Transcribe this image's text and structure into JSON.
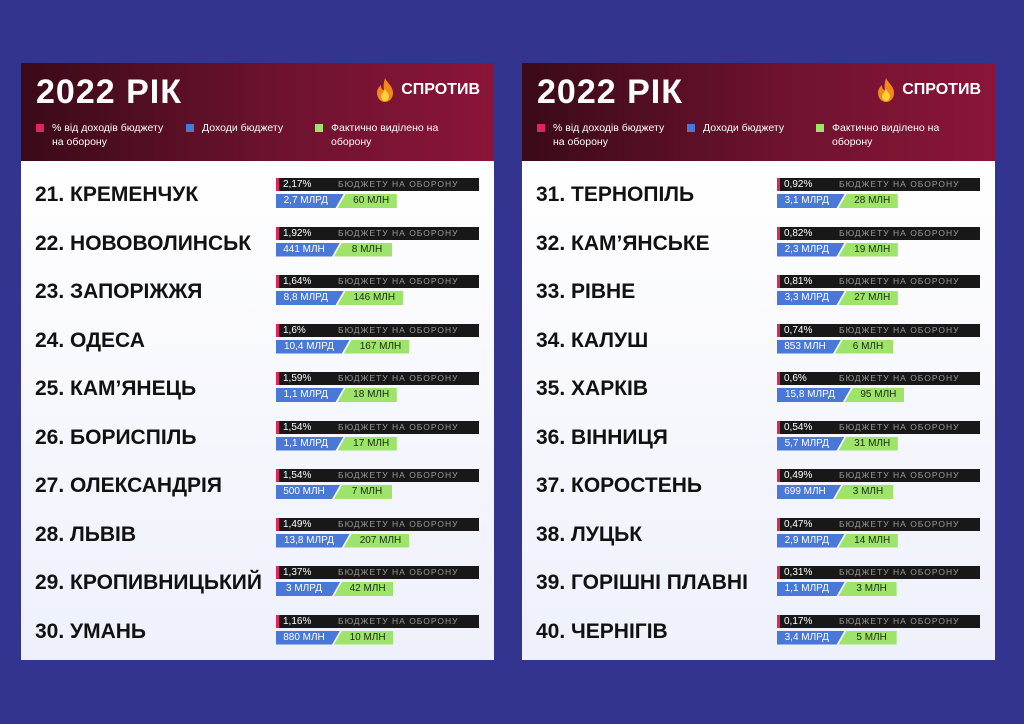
{
  "chart_data": [
    {
      "type": "table",
      "title": "2022 РІК",
      "brand": "СПРОТИВ",
      "legend": {
        "pct": "% від доходів бюджету на оборону",
        "income": "Доходи бюджету",
        "defense": "Фактично виділено на оборону"
      },
      "bar_label": "БЮДЖЕТУ НА ОБОРОНУ",
      "rows": [
        {
          "rank": "21.",
          "city": "КРЕМЕНЧУК",
          "pct": "2,17%",
          "income": "2,7 МЛРД",
          "defense": "60 МЛН"
        },
        {
          "rank": "22.",
          "city": "НОВОВОЛИНСЬК",
          "pct": "1,92%",
          "income": "441 МЛН",
          "defense": "8 МЛН"
        },
        {
          "rank": "23.",
          "city": "ЗАПОРІЖЖЯ",
          "pct": "1,64%",
          "income": "8,8 МЛРД",
          "defense": "146 МЛН"
        },
        {
          "rank": "24.",
          "city": "ОДЕСА",
          "pct": "1,6%",
          "income": "10,4 МЛРД",
          "defense": "167 МЛН"
        },
        {
          "rank": "25.",
          "city": "КАМ’ЯНЕЦЬ",
          "pct": "1,59%",
          "income": "1,1 МЛРД",
          "defense": "18 МЛН"
        },
        {
          "rank": "26.",
          "city": "БОРИСПІЛЬ",
          "pct": "1,54%",
          "income": "1,1 МЛРД",
          "defense": "17 МЛН"
        },
        {
          "rank": "27.",
          "city": "ОЛЕКСАНДРІЯ",
          "pct": "1,54%",
          "income": "500 МЛН",
          "defense": "7 МЛН"
        },
        {
          "rank": "28.",
          "city": "ЛЬВІВ",
          "pct": "1,49%",
          "income": "13,8 МЛРД",
          "defense": "207 МЛН"
        },
        {
          "rank": "29.",
          "city": "КРОПИВНИЦЬКИЙ",
          "pct": "1,37%",
          "income": "3 МЛРД",
          "defense": "42 МЛН"
        },
        {
          "rank": "30.",
          "city": "УМАНЬ",
          "pct": "1,16%",
          "income": "880 МЛН",
          "defense": "10 МЛН"
        }
      ]
    },
    {
      "type": "table",
      "title": "2022 РІК",
      "brand": "СПРОТИВ",
      "legend": {
        "pct": "% від доходів бюджету на оборону",
        "income": "Доходи бюджету",
        "defense": "Фактично виділено на оборону"
      },
      "bar_label": "БЮДЖЕТУ НА ОБОРОНУ",
      "rows": [
        {
          "rank": "31.",
          "city": "ТЕРНОПІЛЬ",
          "pct": "0,92%",
          "income": "3,1 МЛРД",
          "defense": "28 МЛН"
        },
        {
          "rank": "32.",
          "city": "КАМ’ЯНСЬКЕ",
          "pct": "0,82%",
          "income": "2,3 МЛРД",
          "defense": "19 МЛН"
        },
        {
          "rank": "33.",
          "city": "РІВНЕ",
          "pct": "0,81%",
          "income": "3,3 МЛРД",
          "defense": "27 МЛН"
        },
        {
          "rank": "34.",
          "city": "КАЛУШ",
          "pct": "0,74%",
          "income": "853 МЛН",
          "defense": "6 МЛН"
        },
        {
          "rank": "35.",
          "city": "ХАРКІВ",
          "pct": "0,6%",
          "income": "15,8 МЛРД",
          "defense": "95 МЛН"
        },
        {
          "rank": "36.",
          "city": "ВІННИЦЯ",
          "pct": "0,54%",
          "income": "5,7 МЛРД",
          "defense": "31 МЛН"
        },
        {
          "rank": "37.",
          "city": "КОРОСТЕНЬ",
          "pct": "0,49%",
          "income": "699 МЛН",
          "defense": "3 МЛН"
        },
        {
          "rank": "38.",
          "city": "ЛУЦЬК",
          "pct": "0,47%",
          "income": "2,9 МЛРД",
          "defense": "14 МЛН"
        },
        {
          "rank": "39.",
          "city": "ГОРІШНІ ПЛАВНІ",
          "pct": "0,31%",
          "income": "1,1 МЛРД",
          "defense": "3 МЛН"
        },
        {
          "rank": "40.",
          "city": "ЧЕРНІГІВ",
          "pct": "0,17%",
          "income": "3,4 МЛРД",
          "defense": "5 МЛН"
        }
      ]
    }
  ],
  "colors": {
    "background": "#33348f",
    "pct_marker": "#e0245e",
    "income_bar": "#4a78d6",
    "defense_bar": "#9ee36a"
  }
}
